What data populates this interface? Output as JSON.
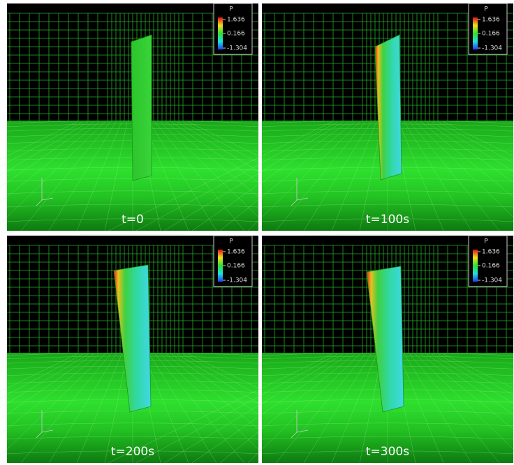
{
  "panels": [
    {
      "caption": "t=0",
      "legend": {
        "title": "P",
        "labels": [
          "1.636",
          "0.166",
          "-1.304"
        ]
      }
    },
    {
      "caption": "t=100s",
      "legend": {
        "title": "P",
        "labels": [
          "1.636",
          "0.166",
          "-1.304"
        ]
      }
    },
    {
      "caption": "t=200s",
      "legend": {
        "title": "P",
        "labels": [
          "1.636",
          "0.166",
          "-1.304"
        ]
      }
    },
    {
      "caption": "t=300s",
      "legend": {
        "title": "P",
        "labels": [
          "1.636",
          "0.166",
          "-1.304"
        ]
      }
    }
  ]
}
